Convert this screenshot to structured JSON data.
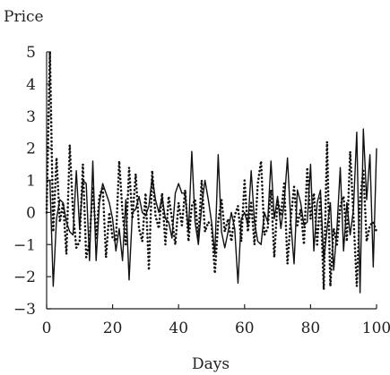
{
  "chart_data": {
    "type": "line",
    "title": "",
    "xlabel": "Days",
    "ylabel": "Price",
    "xlim": [
      0,
      100
    ],
    "ylim": [
      -3,
      5
    ],
    "xticks": [
      0,
      20,
      40,
      60,
      80,
      100
    ],
    "yticks": [
      -3,
      -2,
      -1,
      0,
      1,
      2,
      3,
      4,
      5
    ],
    "grid": false,
    "legend": "none",
    "series": [
      {
        "style": "solid",
        "x": [
          0,
          1,
          2,
          3,
          4,
          5,
          6,
          7,
          8,
          9,
          10,
          11,
          12,
          13,
          14,
          15,
          16,
          17,
          18,
          19,
          20,
          21,
          22,
          23,
          24,
          25,
          26,
          27,
          28,
          29,
          30,
          31,
          32,
          33,
          34,
          35,
          36,
          37,
          38,
          39,
          40,
          41,
          42,
          43,
          44,
          45,
          46,
          47,
          48,
          49,
          50,
          51,
          52,
          53,
          54,
          55,
          56,
          57,
          58,
          59,
          60,
          61,
          62,
          63,
          64,
          65,
          66,
          67,
          68,
          69,
          70,
          71,
          72,
          73,
          74,
          75,
          76,
          77,
          78,
          79,
          80,
          81,
          82,
          83,
          84,
          85,
          86,
          87,
          88,
          89,
          90,
          91,
          92,
          93,
          94,
          95,
          96,
          97,
          98,
          99,
          100
        ],
        "y": [
          1.0,
          1.0,
          -2.3,
          -0.2,
          0.4,
          0.3,
          -0.3,
          -0.6,
          -0.7,
          1.3,
          -0.5,
          1.0,
          0.9,
          -1.5,
          1.6,
          -1.5,
          0.3,
          0.9,
          0.6,
          0.3,
          -0.2,
          -1.2,
          -0.5,
          -1.5,
          0.4,
          -2.1,
          0.0,
          0.1,
          0.5,
          0.0,
          -0.1,
          0.2,
          1.1,
          0.4,
          0.0,
          0.5,
          -0.2,
          -0.3,
          -0.8,
          0.6,
          0.9,
          0.6,
          0.6,
          -0.6,
          1.9,
          -0.3,
          -1.0,
          0.2,
          1.0,
          0.4,
          -0.3,
          -1.3,
          1.8,
          -0.6,
          -1.1,
          -0.6,
          0.0,
          -0.5,
          -2.2,
          -0.2,
          0.0,
          -0.4,
          1.3,
          -0.3,
          -0.9,
          -1.0,
          0.0,
          -0.3,
          1.6,
          -0.2,
          0.5,
          -0.5,
          0.3,
          1.7,
          -0.3,
          -1.6,
          0.7,
          0.3,
          -0.4,
          -0.3,
          1.5,
          -1.2,
          0.3,
          0.7,
          -1.5,
          -0.5,
          0.3,
          -1.8,
          -0.5,
          1.4,
          -1.2,
          0.3,
          -0.7,
          0.1,
          2.5,
          -2.5,
          2.6,
          0.4,
          1.8,
          -1.7,
          2.0
        ]
      },
      {
        "style": "dotted",
        "x": [
          0,
          1,
          2,
          3,
          4,
          5,
          6,
          7,
          8,
          9,
          10,
          11,
          12,
          13,
          14,
          15,
          16,
          17,
          18,
          19,
          20,
          21,
          22,
          23,
          24,
          25,
          26,
          27,
          28,
          29,
          30,
          31,
          32,
          33,
          34,
          35,
          36,
          37,
          38,
          39,
          40,
          41,
          42,
          43,
          44,
          45,
          46,
          47,
          48,
          49,
          50,
          51,
          52,
          53,
          54,
          55,
          56,
          57,
          58,
          59,
          60,
          61,
          62,
          63,
          64,
          65,
          66,
          67,
          68,
          69,
          70,
          71,
          72,
          73,
          74,
          75,
          76,
          77,
          78,
          79,
          80,
          81,
          82,
          83,
          84,
          85,
          86,
          87,
          88,
          89,
          90,
          91,
          92,
          93,
          94,
          95,
          96,
          97,
          98,
          99,
          100
        ],
        "y": [
          0.0,
          5.0,
          -0.6,
          1.7,
          -0.3,
          0.3,
          -1.3,
          2.1,
          0.0,
          -1.1,
          -0.9,
          1.5,
          -1.4,
          -0.9,
          0.8,
          -0.8,
          0.5,
          0.8,
          -1.4,
          0.0,
          -0.8,
          -0.9,
          1.6,
          0.0,
          -1.0,
          1.4,
          -0.2,
          1.2,
          -0.5,
          -0.9,
          0.6,
          -1.8,
          1.3,
          -0.1,
          -0.5,
          0.6,
          -1.0,
          0.5,
          -0.2,
          -1.0,
          0.3,
          -0.4,
          0.7,
          -0.9,
          0.2,
          0.4,
          -0.8,
          1.0,
          -0.6,
          -0.3,
          -0.4,
          -1.9,
          -0.3,
          0.4,
          -0.6,
          -0.2,
          -0.9,
          -0.1,
          0.2,
          -0.9,
          1.0,
          -0.6,
          0.3,
          -1.0,
          0.9,
          1.6,
          -0.7,
          -0.5,
          0.7,
          -1.4,
          0.4,
          -0.1,
          0.9,
          -1.6,
          -0.2,
          0.8,
          -0.4,
          0.1,
          -1.0,
          1.4,
          -0.2,
          0.6,
          -1.0,
          0.5,
          -2.4,
          2.2,
          -2.3,
          -0.5,
          -1.0,
          0.2,
          0.5,
          -0.9,
          1.9,
          -0.1,
          -2.3,
          0.4,
          1.3,
          -0.9,
          -0.4,
          -0.3,
          -0.6
        ]
      }
    ]
  }
}
